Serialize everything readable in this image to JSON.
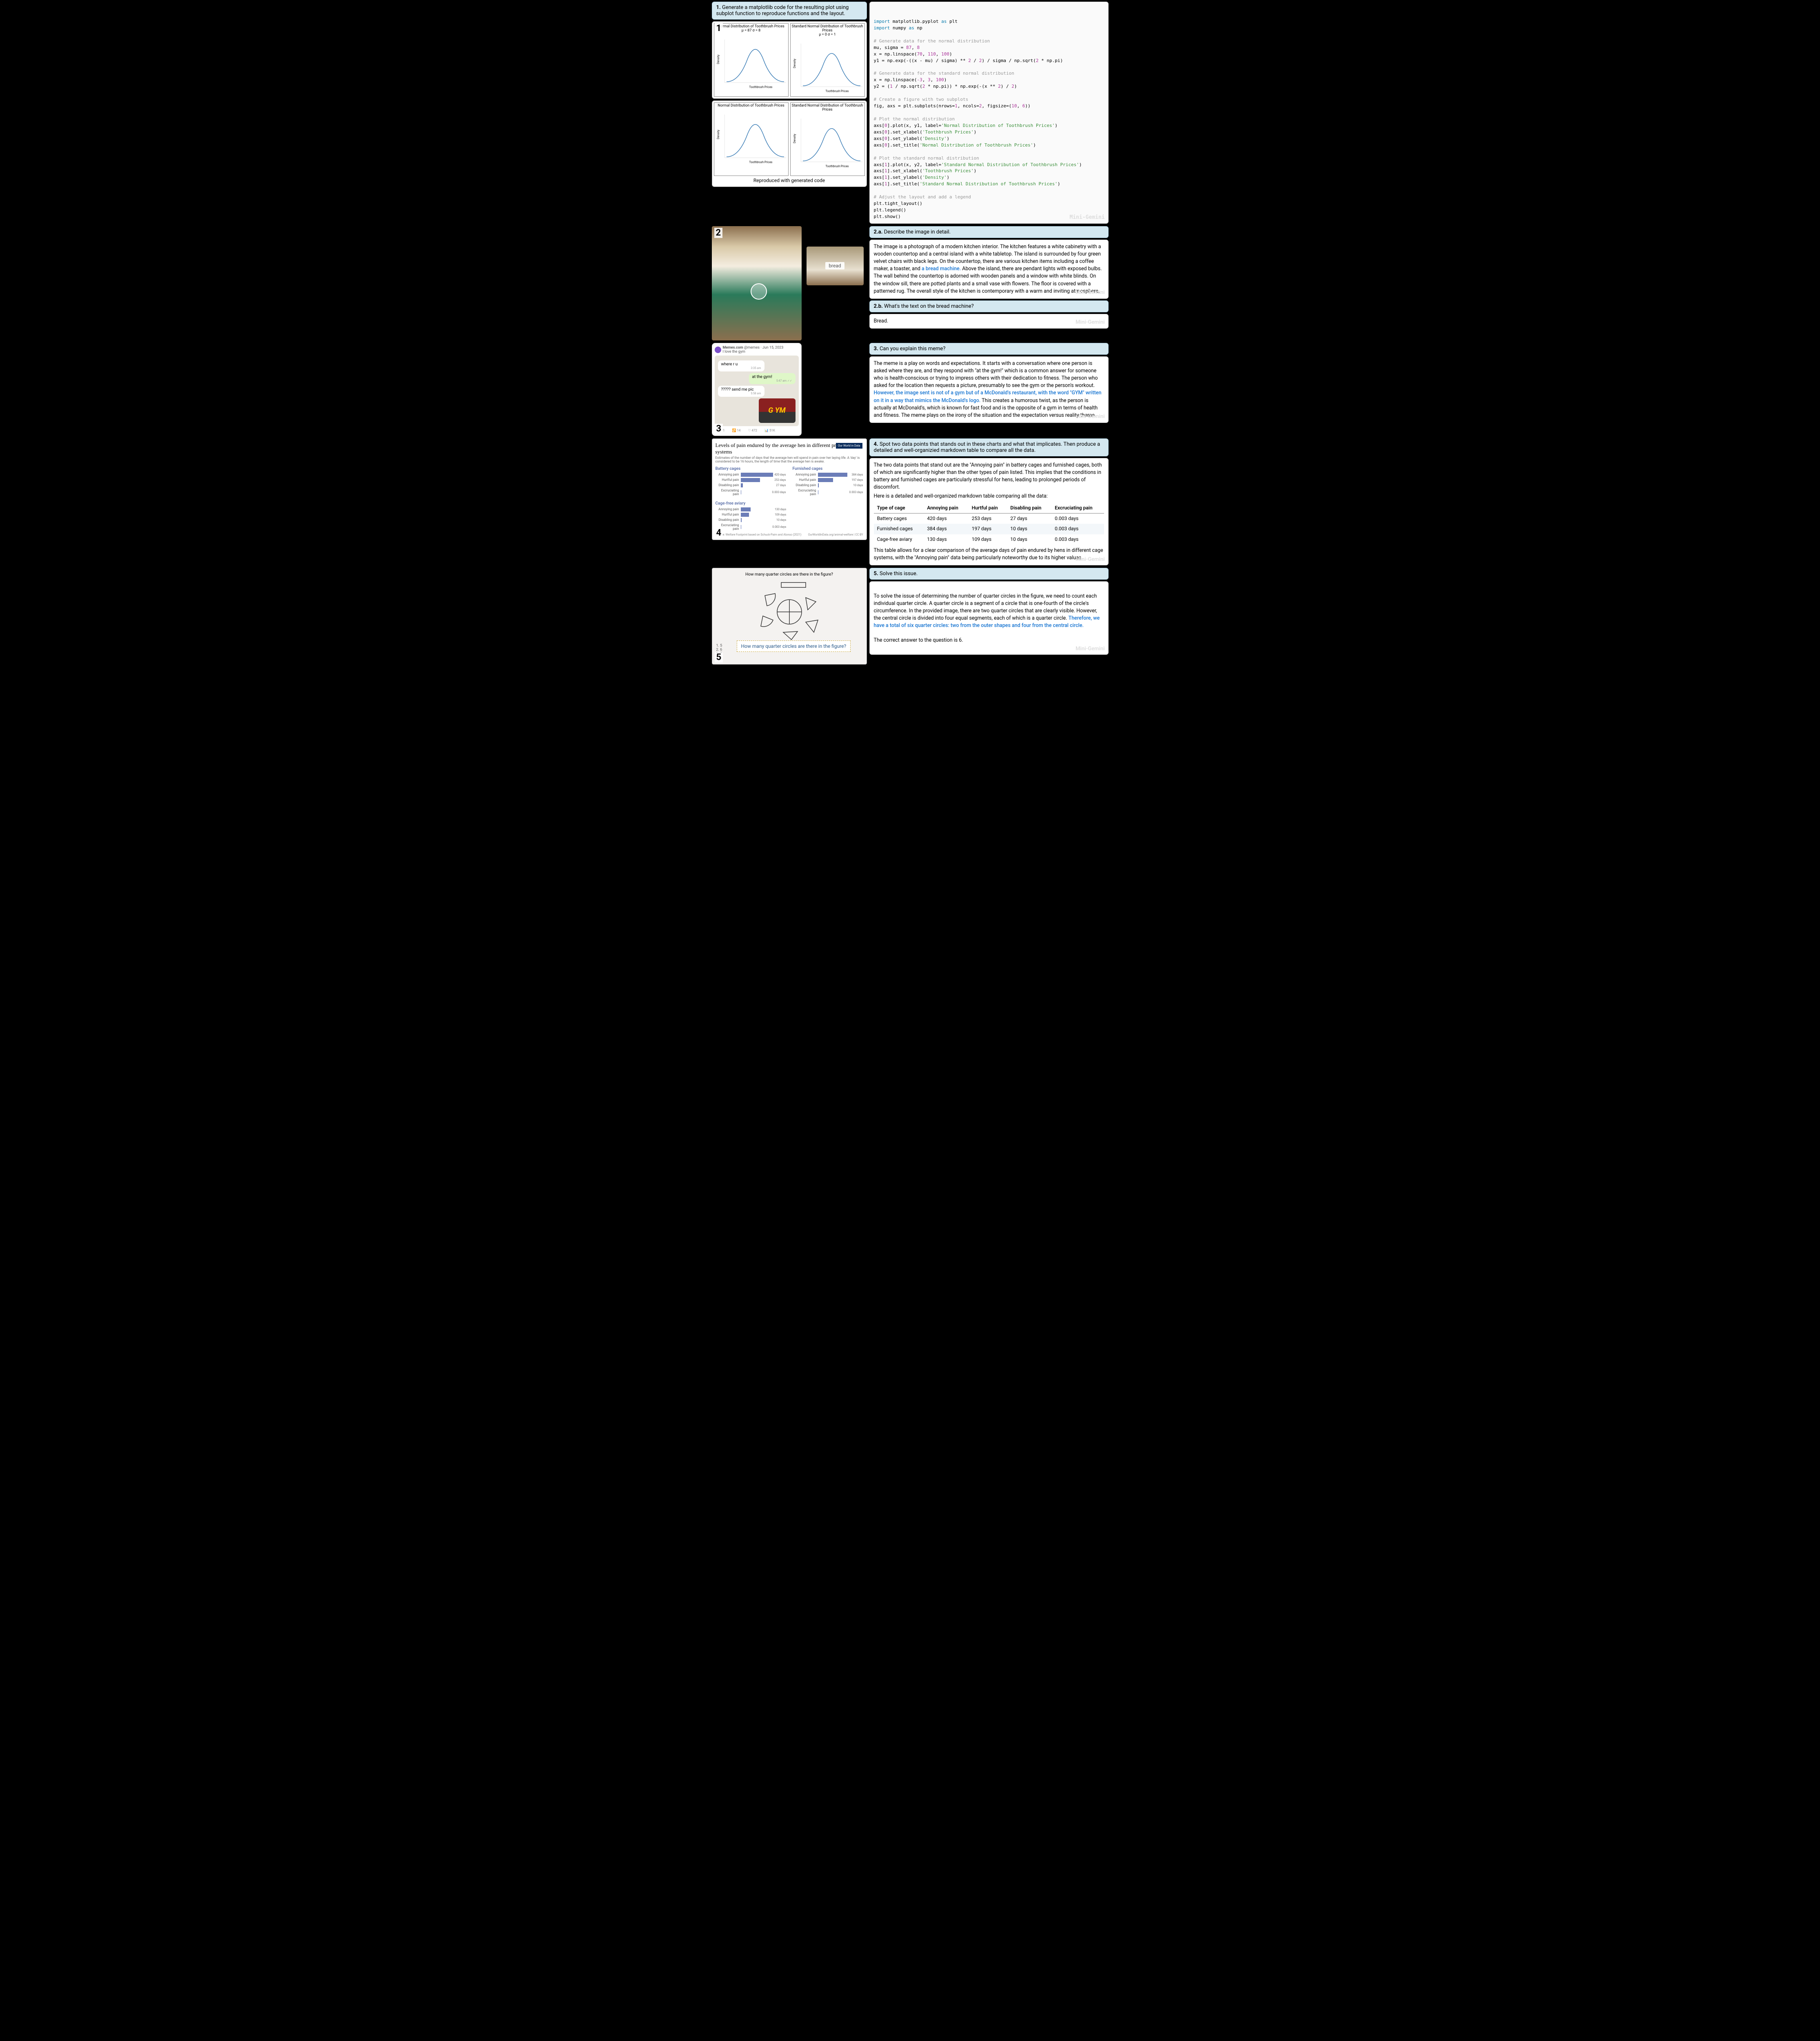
{
  "watermark": "Mini-Gemini",
  "sec1": {
    "prompt_num": "1.",
    "prompt_text": "Generate a matplotlib code for the resulting plot using subplot function to reproduce functions and the layout.",
    "chart_a_title": "Normal Distribution of Toothbrush Prices",
    "chart_a_sub": "μ = 87 σ = 8",
    "chart_b_title": "Standard Normal Distribution of Toothbrush Prices",
    "chart_b_sub": "μ = 0 σ = 1",
    "xlabel": "Toothbrush Prices",
    "ylabel": "Density",
    "yticks_a": [
      "0.00",
      "0.01",
      "0.02",
      "0.03",
      "0.04",
      "0.05"
    ],
    "xticks_a": [
      "70",
      "80",
      "90",
      "100",
      "110"
    ],
    "yticks_b": [
      "0.00",
      "0.05",
      "0.10",
      "0.15",
      "0.20",
      "0.25",
      "0.30",
      "0.35",
      "0.40"
    ],
    "xticks_b": [
      "-3",
      "-2",
      "-1",
      "0",
      "1",
      "2",
      "3"
    ],
    "xticks_a2": [
      "70",
      "75",
      "80",
      "85",
      "90",
      "95",
      "100",
      "105",
      "110"
    ],
    "caption": "Reproduced with generated code",
    "curve_color": "#3b7db6",
    "grid_color": "#e0e0e0"
  },
  "code": {
    "l1a": "import",
    "l1b": "matplotlib.pyplot",
    "l1c": "as",
    "l1d": "plt",
    "l2a": "import",
    "l2b": "numpy",
    "l2c": "as",
    "l2d": "np",
    "c1": "# Generate data for the normal distribution",
    "l3": "mu, sigma = ",
    "l3n1": "87",
    "l3s": ", ",
    "l3n2": "8",
    "l4a": "x = np.linspace(",
    "l4n1": "70",
    "l4s1": ", ",
    "l4n2": "110",
    "l4s2": ", ",
    "l4n3": "100",
    "l4e": ")",
    "l5a": "y1 = np.exp(-((x - mu) / sigma) ** ",
    "l5n1": "2",
    "l5b": " / ",
    "l5n2": "2",
    "l5c": ") / sigma / np.sqrt(",
    "l5n3": "2",
    "l5d": " * np.pi)",
    "c2": "# Generate data for the standard normal distribution",
    "l6a": "x = np.linspace(",
    "l6n1": "-3",
    "l6s1": ", ",
    "l6n2": "3",
    "l6s2": ", ",
    "l6n3": "100",
    "l6e": ")",
    "l7a": "y2 = (",
    "l7n1": "1",
    "l7b": " / np.sqrt(",
    "l7n2": "2",
    "l7c": " * np.pi)) * np.exp(-(x ** ",
    "l7n3": "2",
    "l7d": ") / ",
    "l7n4": "2",
    "l7e": ")",
    "c3": "# Create a figure with two subplots",
    "l8a": "fig, axs = plt.subplots(nrows=",
    "l8n1": "1",
    "l8b": ", ncols=",
    "l8n2": "2",
    "l8c": ", figsize=(",
    "l8n3": "10",
    "l8d": ", ",
    "l8n4": "6",
    "l8e": "))",
    "c4": "# Plot the normal distribution",
    "l9a": "axs[",
    "l9n": "0",
    "l9b": "].plot(x, y1, label=",
    "l9s": "'Normal Distribution of Toothbrush Prices'",
    "l9e": ")",
    "l10a": "axs[",
    "l10n": "0",
    "l10b": "].set_xlabel(",
    "l10s": "'Toothbrush Prices'",
    "l10e": ")",
    "l11a": "axs[",
    "l11n": "0",
    "l11b": "].set_ylabel(",
    "l11s": "'Density'",
    "l11e": ")",
    "l12a": "axs[",
    "l12n": "0",
    "l12b": "].set_title(",
    "l12s": "'Normal Distribution of Toothbrush Prices'",
    "l12e": ")",
    "c5": "# Plot the standard normal distribution",
    "l13a": "axs[",
    "l13n": "1",
    "l13b": "].plot(x, y2, label=",
    "l13s": "'Standard Normal Distribution of Toothbrush Prices'",
    "l13e": ")",
    "l14a": "axs[",
    "l14n": "1",
    "l14b": "].set_xlabel(",
    "l14s": "'Toothbrush Prices'",
    "l14e": ")",
    "l15a": "axs[",
    "l15n": "1",
    "l15b": "].set_ylabel(",
    "l15s": "'Density'",
    "l15e": ")",
    "l16a": "axs[",
    "l16n": "1",
    "l16b": "].set_title(",
    "l16s": "'Standard Normal Distribution of Toothbrush Prices'",
    "l16e": ")",
    "c6": "# Adjust the layout and add a legend",
    "l17": "plt.tight_layout()",
    "l18": "plt.legend()",
    "l19": "plt.show()"
  },
  "sec2a": {
    "prompt_num": "2.a.",
    "prompt_text": "Describe the image in detail.",
    "resp_a": "The image is a photograph of a modern kitchen interior. The kitchen features a white cabinetry with a wooden countertop and a central island with a white tabletop. The island is surrounded by four green velvet chairs with black legs. On the countertop, there are various kitchen items including a coffee maker, a toaster, and ",
    "resp_hl": "a bread machine.",
    "resp_b": " Above the island, there are pendant lights with exposed bulbs. The wall behind the countertop is adorned with wooden panels and a window with white blinds. On the window sill, there are potted plants and a small vase with flowers. The floor is covered with a patterned rug. The overall style of the kitchen is contemporary with a warm and inviting atmosphere.",
    "crop_label": "bread"
  },
  "sec2b": {
    "prompt_num": "2.b.",
    "prompt_text": "What's the text on the bread machine?",
    "resp": "Bread."
  },
  "sec3": {
    "prompt_num": "3.",
    "prompt_text": "Can you explain this meme?",
    "header_user": "Memes.com",
    "header_handle": "@memes · Jun 15, 2023",
    "header_caption": "I love the gym",
    "msg1": "where r u",
    "ts1": "3:35 am",
    "msg2": "at the gym!",
    "ts2": "5:47 am ✓✓",
    "msg3": "????? send me pic",
    "ts3": "5:58 am",
    "gym": "G YM",
    "foot_rt": "14",
    "foot_like": "472",
    "foot_views": "51K",
    "resp_a": "The meme is a play on words and expectations. It starts with a conversation where one person is asked where they are, and they respond with \"at the gym!\" which is a common answer for someone who is health-conscious or trying to impress others with their dedication to fitness. The person who asked for the location then requests a picture, presumably to see the gym or the person's workout. ",
    "resp_hl": "However, the image sent is not of a gym but of a McDonald's restaurant, with the word \"GYM\" written on it in a way that mimics the McDonald's logo.",
    "resp_b": " This creates a humorous twist, as the person is actually at McDonald's, which is known for fast food and is the opposite of a gym in terms of health and fitness. The meme plays on the irony of the situation and the expectation versus reality theme."
  },
  "sec4": {
    "prompt_num": "4.",
    "prompt_text": "Spot two data points that stands out in these charts and what that implicates. Then produce a detailed and well-organizied markdown table to compare all the data.",
    "chart_title": "Levels of pain endured by the average hen in different production systems",
    "chart_sub": "Estimates of the number of days that the average hen will spend in pain over her laying life. A 'day' is considered to be 16 hours, the length of time that the average hen is awake.",
    "logo": "Our World in Data",
    "groups": [
      "Battery cages",
      "Furnished cages",
      "Cage-free aviary"
    ],
    "labels": [
      "Annoying pain",
      "Hurtful pain",
      "Disabling pain",
      "Excruciating pain"
    ],
    "values": {
      "battery": [
        "420 days",
        "253 days",
        "27 days",
        "0.003 days"
      ],
      "furnished": [
        "384 days",
        "197 days",
        "10 days",
        "0.003 days"
      ],
      "cagefree": [
        "130 days",
        "109 days",
        "10 days",
        "0.003 days"
      ]
    },
    "bar_pct": {
      "battery": [
        100,
        60,
        7,
        1
      ],
      "furnished": [
        91,
        47,
        3,
        1
      ],
      "cagefree": [
        31,
        26,
        3,
        1
      ]
    },
    "src_left": "Source: Welfare Footprint based on Schuck-Paim and Alonso (2021)",
    "src_right": "OurWorldInData.org/animal-welfare | CC BY",
    "resp_a": "The two data points that stand out are the \"Annoying pain\" in battery cages and furnished cages, both of which are significantly higher than the other types of pain listed. This implies that the conditions in battery and furnished cages are particularly stressful for hens, leading to prolonged periods of discomfort.",
    "resp_b": "Here is a detailed and well-organized markdown table comparing all the data:",
    "tbl_head": [
      "Type of cage",
      "Annoying pain",
      "Hurtful pain",
      "Disabling pain",
      "Excruciating pain"
    ],
    "tbl_rows": [
      [
        "Battery cages",
        "420 days",
        "253 days",
        "27 days",
        "0.003 days"
      ],
      [
        "Furnished cages",
        "384 days",
        "197 days",
        "10 days",
        "0.003 days"
      ],
      [
        "Cage-free aviary",
        "130 days",
        "109 days",
        "10 days",
        "0.003 days"
      ]
    ],
    "resp_c": "This table allows for a clear comparison of the average days of pain endured by hens in different cage systems, with the \"Annoying pain\" data being particularly noteworthy due to its higher values."
  },
  "sec5": {
    "prompt_num": "5.",
    "prompt_text": "Solve this issue.",
    "qc_title": "How many quarter circles are there in the figure?",
    "qc_zoom": "How many quarter circles are there in the figure?",
    "answers": [
      "1. 5",
      "2. 6",
      "3. 7",
      "4. 4"
    ],
    "resp_a": "To solve the issue of determining the number of quarter circles in the figure, we need to count each individual quarter circle. A quarter circle is a segment of a circle that is one-fourth of the circle's circumference. In the provided image, there are two quarter circles that are clearly visible. However, the central circle is divided into four equal segments, each of which is a quarter circle. ",
    "resp_hl": "Therefore, we have a total of six quarter circles: two from the outer shapes and four from the central circle.",
    "resp_b": "The correct answer to the question is 6."
  }
}
